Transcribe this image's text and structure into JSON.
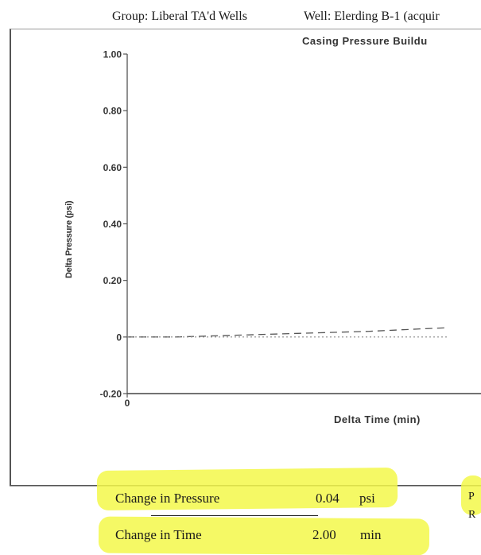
{
  "header": {
    "group": "Group: Liberal TA'd Wells",
    "well": "Well: Elerding B-1 (acquir"
  },
  "chart_data": {
    "type": "line",
    "title": "Casing Pressure Buildu",
    "xlabel": "Delta Time (min)",
    "ylabel": "Delta Pressure (psi)",
    "ylim": [
      -0.2,
      1.0
    ],
    "yticks": [
      "1.00",
      "0.80",
      "0.60",
      "0.40",
      "0.20",
      "0",
      "-0.20"
    ],
    "xticks": [
      "0"
    ],
    "series": [
      {
        "style": "dashed",
        "x": [
          0,
          0.3,
          0.6,
          0.9,
          1.2,
          1.5,
          1.8,
          2.0
        ],
        "y": [
          0.0,
          0.0,
          0.005,
          0.01,
          0.015,
          0.02,
          0.028,
          0.033
        ]
      },
      {
        "style": "dotted",
        "x": [
          0,
          0.5,
          1.0,
          1.5,
          2.0
        ],
        "y": [
          0.0,
          0.0,
          0.0,
          0.0,
          0.0
        ]
      }
    ]
  },
  "stats": {
    "pressure_label": "Change in Pressure",
    "pressure_value": "0.04",
    "pressure_unit": "psi",
    "time_label": "Change in Time",
    "time_value": "2.00",
    "time_unit": "min",
    "edge_p": "P",
    "edge_r": "R"
  },
  "colors": {
    "highlight": "#f3f84a"
  }
}
